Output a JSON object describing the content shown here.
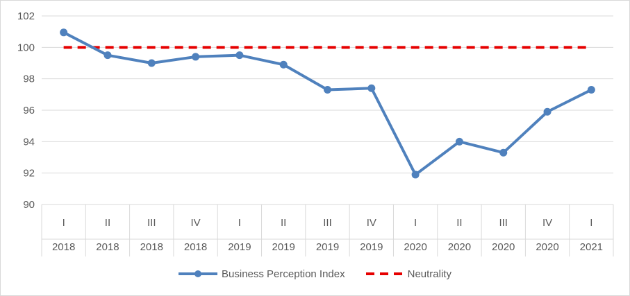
{
  "chart_data": {
    "type": "line",
    "title": "",
    "xlabel": "",
    "ylabel": "",
    "ylim": [
      90,
      102
    ],
    "yticks": [
      90,
      92,
      94,
      96,
      98,
      100,
      102
    ],
    "categories": [
      {
        "quarter": "I",
        "year": "2018"
      },
      {
        "quarter": "II",
        "year": "2018"
      },
      {
        "quarter": "III",
        "year": "2018"
      },
      {
        "quarter": "IV",
        "year": "2018"
      },
      {
        "quarter": "I",
        "year": "2019"
      },
      {
        "quarter": "II",
        "year": "2019"
      },
      {
        "quarter": "III",
        "year": "2019"
      },
      {
        "quarter": "IV",
        "year": "2019"
      },
      {
        "quarter": "I",
        "year": "2020"
      },
      {
        "quarter": "II",
        "year": "2020"
      },
      {
        "quarter": "III",
        "year": "2020"
      },
      {
        "quarter": "IV",
        "year": "2020"
      },
      {
        "quarter": "I",
        "year": "2021"
      }
    ],
    "series": [
      {
        "name": "Business Perception Index",
        "color": "#4f81bd",
        "style": "solid-with-markers",
        "values": [
          100.95,
          99.5,
          99.0,
          99.4,
          99.5,
          98.9,
          97.3,
          97.4,
          91.9,
          94.0,
          93.3,
          95.9,
          97.3
        ]
      },
      {
        "name": "Neutrality",
        "color": "#e60000",
        "style": "dashed",
        "values": [
          100,
          100,
          100,
          100,
          100,
          100,
          100,
          100,
          100,
          100,
          100,
          100,
          100
        ]
      }
    ],
    "grid": true,
    "legend_position": "bottom"
  }
}
